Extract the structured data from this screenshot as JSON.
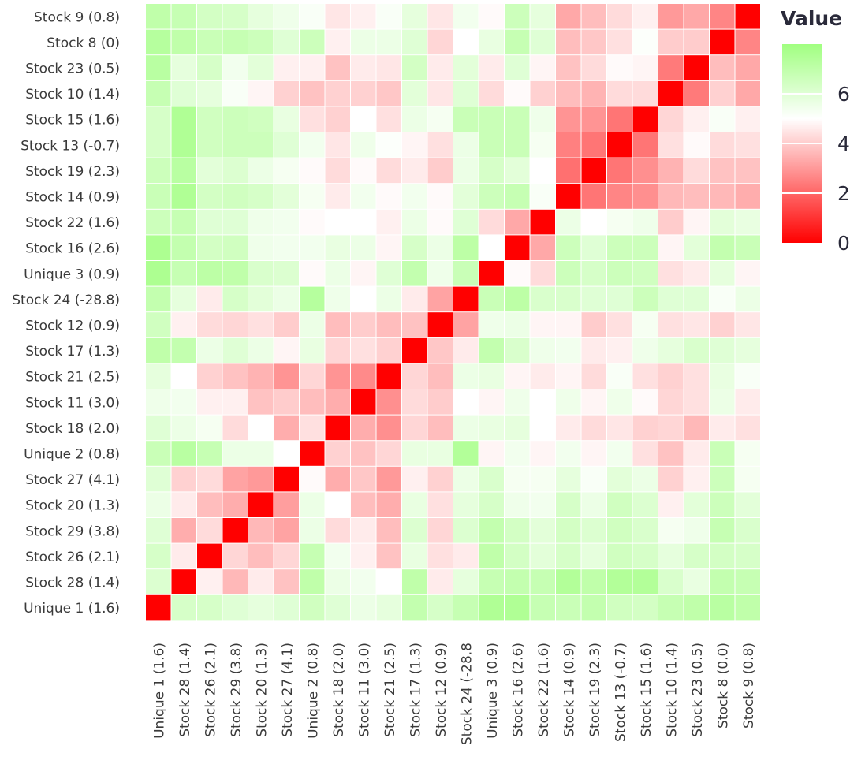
{
  "chart_data": {
    "type": "heatmap",
    "title": "",
    "legend": {
      "title": "Value",
      "position": "right",
      "ticks": [
        0,
        2,
        4,
        6
      ],
      "range": [
        0,
        8
      ]
    },
    "colors": {
      "low": "#ff0000",
      "mid": "#ffffff",
      "high": "#a0ff80",
      "mid_value": 5
    },
    "x_labels": [
      "Unique 1 (1.6)",
      "Stock 28 (1.4)",
      "Stock 26 (2.1)",
      "Stock 29 (3.8)",
      "Stock 20 (1.3)",
      "Stock 27 (4.1)",
      "Unique 2 (0.8)",
      "Stock 18 (2.0)",
      "Stock 11 (3.0)",
      "Stock 21 (2.5)",
      "Stock 17 (1.3)",
      "Stock 12 (0.9)",
      "Stock 24 (-28.8",
      "Unique 3 (0.9)",
      "Stock 16 (2.6)",
      "Stock 22 (1.6)",
      "Stock 14 (0.9)",
      "Stock 19 (2.3)",
      "Stock 13 (-0.7)",
      "Stock 15 (1.6)",
      "Stock 10 (1.4)",
      "Stock 23 (0.5)",
      "Stock 8 (0.0)",
      "Stock 9 (0.8)"
    ],
    "y_labels_top_to_bottom": [
      "Stock 9 (0.8)",
      "Stock 8 (0)",
      "Stock 23 (0.5)",
      "Stock 10 (1.4)",
      "Stock 15 (1.6)",
      "Stock 13 (-0.7)",
      "Stock 19 (2.3)",
      "Stock 14 (0.9)",
      "Stock 22 (1.6)",
      "Stock 16 (2.6)",
      "Unique 3 (0.9)",
      "Stock 24 (-28.8)",
      "Stock 12 (0.9)",
      "Stock 17 (1.3)",
      "Stock 21 (2.5)",
      "Stock 11 (3.0)",
      "Stock 18 (2.0)",
      "Unique 2 (0.8)",
      "Stock 27 (4.1)",
      "Stock 20 (1.3)",
      "Stock 29 (3.8)",
      "Stock 26 (2.1)",
      "Stock 28 (1.4)",
      "Unique 1 (1.6)"
    ],
    "values_top_to_bottom": [
      [
        7.0,
        6.8,
        6.4,
        6.3,
        5.8,
        5.5,
        5.2,
        4.5,
        4.7,
        5.2,
        5.8,
        4.5,
        5.4,
        4.9,
        6.6,
        5.8,
        3.3,
        3.7,
        4.3,
        4.7,
        3.0,
        3.3,
        2.6,
        0
      ],
      [
        7.3,
        7.0,
        6.7,
        6.8,
        6.6,
        6.0,
        6.6,
        4.7,
        5.6,
        5.6,
        6.0,
        4.2,
        5.0,
        5.7,
        6.8,
        6.0,
        3.7,
        3.9,
        4.4,
        5.1,
        4.0,
        4.0,
        0,
        2.6
      ],
      [
        7.2,
        5.8,
        6.3,
        5.4,
        5.9,
        4.7,
        4.7,
        3.8,
        4.6,
        4.5,
        6.4,
        4.6,
        5.9,
        4.6,
        6.0,
        4.8,
        3.8,
        4.3,
        4.9,
        4.8,
        2.4,
        0,
        3.7,
        3.3
      ],
      [
        6.8,
        6.0,
        5.8,
        5.2,
        4.8,
        4.1,
        3.8,
        4.1,
        4.1,
        3.9,
        5.9,
        4.5,
        6.0,
        4.3,
        4.9,
        4.1,
        3.7,
        3.5,
        4.3,
        4.3,
        0,
        2.4,
        4.1,
        3.3
      ],
      [
        6.3,
        7.5,
        6.5,
        6.6,
        6.5,
        5.7,
        4.4,
        4.1,
        5.0,
        4.4,
        5.6,
        5.3,
        6.7,
        6.7,
        6.7,
        5.5,
        2.9,
        2.9,
        2.3,
        0,
        4.2,
        4.7,
        5.2,
        4.7
      ],
      [
        6.3,
        7.5,
        6.5,
        6.6,
        6.6,
        6.0,
        5.4,
        4.5,
        5.5,
        5.1,
        4.8,
        4.4,
        5.6,
        6.7,
        6.7,
        5.3,
        2.5,
        2.3,
        0,
        2.3,
        4.4,
        4.9,
        4.3,
        4.4
      ],
      [
        6.6,
        7.2,
        5.9,
        6.1,
        5.6,
        5.3,
        4.9,
        4.3,
        4.9,
        4.3,
        4.6,
        4.0,
        5.6,
        6.3,
        5.9,
        5.0,
        2.2,
        0,
        2.3,
        2.8,
        3.5,
        4.3,
        3.8,
        3.8
      ],
      [
        6.7,
        7.5,
        6.4,
        6.5,
        6.3,
        5.9,
        5.3,
        4.6,
        5.4,
        4.9,
        5.4,
        4.9,
        5.9,
        6.6,
        6.8,
        5.2,
        0,
        2.3,
        2.6,
        2.8,
        3.6,
        3.7,
        3.6,
        3.4
      ],
      [
        6.6,
        6.8,
        6.0,
        6.0,
        5.5,
        5.4,
        4.9,
        5.0,
        5.0,
        4.7,
        5.6,
        4.9,
        6.0,
        4.3,
        3.3,
        0,
        5.6,
        5.0,
        5.3,
        5.5,
        4.0,
        4.8,
        5.9,
        5.7
      ],
      [
        7.6,
        6.9,
        6.4,
        6.5,
        5.5,
        5.4,
        5.4,
        5.7,
        5.6,
        4.8,
        6.3,
        5.6,
        7.1,
        5.0,
        0,
        3.3,
        6.6,
        6.0,
        6.6,
        6.6,
        4.8,
        5.9,
        6.9,
        6.7
      ],
      [
        7.6,
        6.8,
        7.1,
        7.0,
        6.2,
        6.1,
        4.9,
        5.6,
        4.8,
        6.0,
        6.9,
        5.5,
        6.7,
        0,
        4.9,
        4.3,
        6.6,
        6.3,
        6.6,
        6.5,
        4.4,
        4.6,
        5.8,
        4.8
      ],
      [
        6.9,
        5.8,
        4.6,
        6.3,
        5.9,
        5.6,
        7.3,
        5.5,
        5.0,
        5.6,
        4.6,
        3.2,
        0,
        6.7,
        7.1,
        6.2,
        6.2,
        6.0,
        6.0,
        6.6,
        6.0,
        6.0,
        5.2,
        5.6
      ],
      [
        6.5,
        4.7,
        4.3,
        4.2,
        4.4,
        4.0,
        5.6,
        3.7,
        4.0,
        3.7,
        3.8,
        0,
        3.2,
        5.5,
        5.6,
        4.8,
        4.8,
        4.0,
        4.4,
        5.3,
        4.4,
        4.5,
        4.1,
        4.5
      ],
      [
        7.0,
        6.9,
        5.6,
        6.0,
        5.6,
        4.8,
        5.7,
        4.2,
        4.4,
        4.1,
        0,
        3.9,
        4.6,
        6.9,
        6.2,
        5.5,
        5.4,
        4.6,
        4.7,
        5.5,
        5.8,
        6.2,
        6.0,
        5.8
      ],
      [
        5.8,
        5.0,
        4.1,
        3.8,
        3.5,
        2.9,
        4.2,
        2.9,
        2.7,
        0,
        4.2,
        3.7,
        5.6,
        5.7,
        4.8,
        4.6,
        4.8,
        4.3,
        5.2,
        4.4,
        4.1,
        4.4,
        5.7,
        5.2
      ],
      [
        5.5,
        5.4,
        4.7,
        4.7,
        3.8,
        4.0,
        3.7,
        3.4,
        0,
        2.8,
        4.3,
        4.0,
        5.0,
        4.8,
        5.5,
        5.0,
        5.5,
        4.8,
        5.5,
        4.9,
        4.2,
        4.4,
        5.6,
        4.6
      ],
      [
        6.0,
        5.6,
        5.3,
        4.3,
        5.0,
        3.4,
        4.4,
        0,
        3.4,
        2.8,
        4.2,
        3.7,
        5.6,
        5.7,
        5.8,
        5.0,
        4.6,
        4.3,
        4.5,
        4.1,
        4.2,
        3.6,
        4.6,
        4.4
      ],
      [
        6.7,
        7.2,
        6.8,
        5.6,
        5.6,
        5.0,
        0,
        4.1,
        3.8,
        4.2,
        5.7,
        5.7,
        7.4,
        4.8,
        5.4,
        4.8,
        5.4,
        4.8,
        5.4,
        4.4,
        3.8,
        4.6,
        6.7,
        5.3
      ],
      [
        6.0,
        4.1,
        4.3,
        3.2,
        3.0,
        0,
        4.9,
        3.4,
        3.9,
        3.0,
        4.7,
        4.1,
        5.6,
        6.2,
        5.3,
        5.3,
        5.8,
        5.2,
        5.9,
        5.6,
        4.1,
        4.7,
        6.6,
        5.3
      ],
      [
        5.6,
        4.6,
        3.7,
        3.4,
        0,
        3.1,
        5.6,
        5.0,
        3.7,
        3.4,
        5.7,
        4.4,
        5.8,
        6.3,
        5.5,
        5.4,
        6.3,
        5.6,
        6.5,
        6.1,
        4.7,
        5.9,
        6.6,
        5.9
      ],
      [
        6.0,
        3.4,
        4.3,
        0,
        3.6,
        3.2,
        5.6,
        4.3,
        4.6,
        3.7,
        6.1,
        4.2,
        6.1,
        6.9,
        6.4,
        5.9,
        6.4,
        6.1,
        6.5,
        6.2,
        5.3,
        5.5,
        6.8,
        6.2
      ],
      [
        6.3,
        4.6,
        0,
        4.2,
        3.7,
        4.2,
        6.8,
        5.4,
        4.7,
        3.8,
        5.7,
        4.4,
        4.6,
        7.0,
        6.4,
        5.9,
        6.3,
        5.8,
        6.5,
        6.3,
        5.8,
        6.3,
        6.4,
        6.3
      ],
      [
        6.1,
        0,
        4.7,
        3.6,
        4.6,
        3.8,
        7.0,
        5.6,
        5.4,
        5.0,
        7.0,
        4.6,
        5.8,
        6.8,
        6.9,
        6.8,
        7.4,
        7.0,
        7.4,
        7.4,
        6.2,
        5.7,
        6.9,
        6.8
      ],
      [
        0,
        6.3,
        6.3,
        6.0,
        5.8,
        6.0,
        6.5,
        6.0,
        5.6,
        5.8,
        6.9,
        6.3,
        6.8,
        7.5,
        7.5,
        6.8,
        6.7,
        6.9,
        6.5,
        6.4,
        6.8,
        7.0,
        7.2,
        7.0
      ]
    ]
  }
}
